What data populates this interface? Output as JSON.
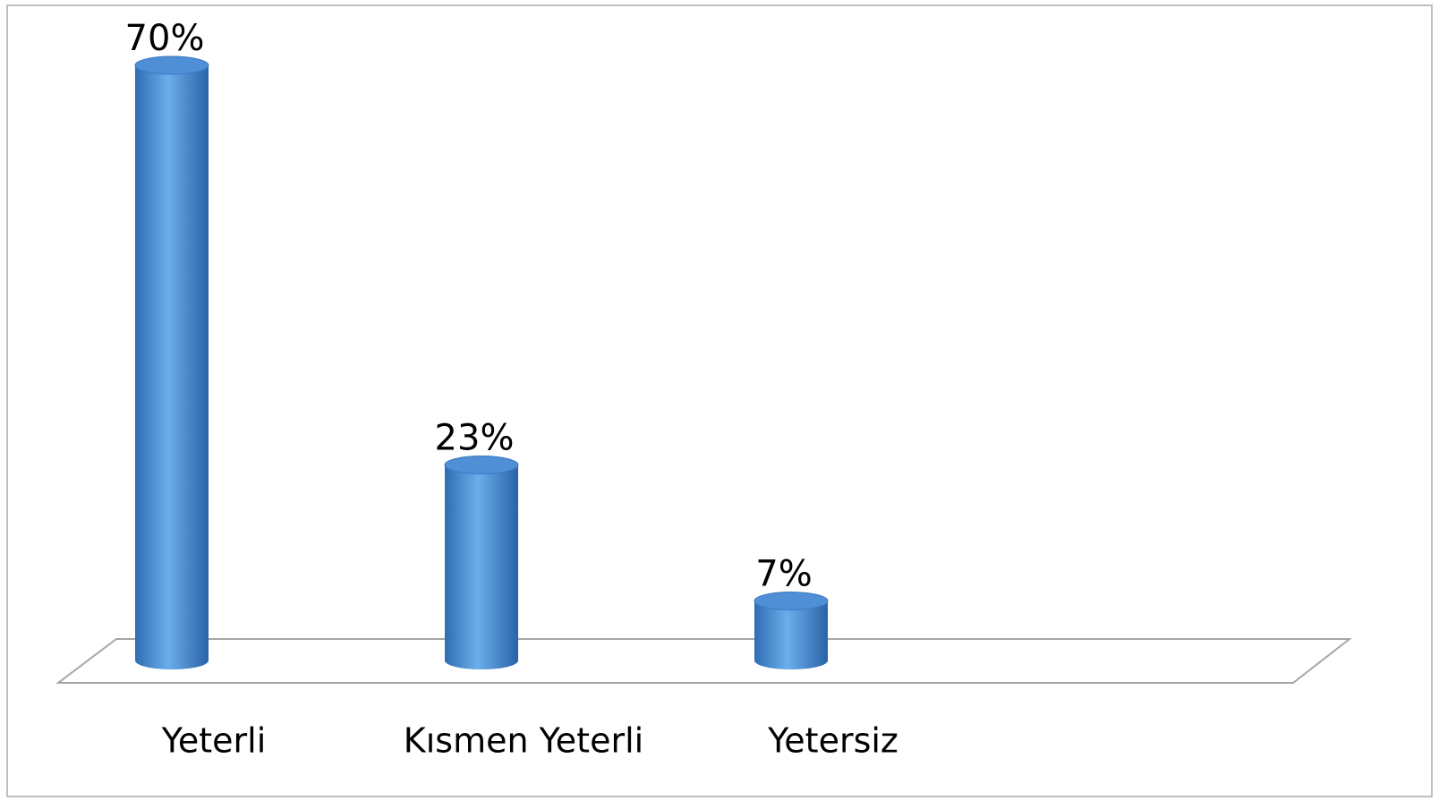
{
  "chart_data": {
    "type": "bar3d",
    "categories": [
      "Yeterli",
      "Kısmen Yeterli",
      "Yetersiz"
    ],
    "values": [
      70,
      23,
      7
    ],
    "value_labels": [
      "70%",
      "23%",
      "7%"
    ],
    "color": "#4f8fd6"
  }
}
